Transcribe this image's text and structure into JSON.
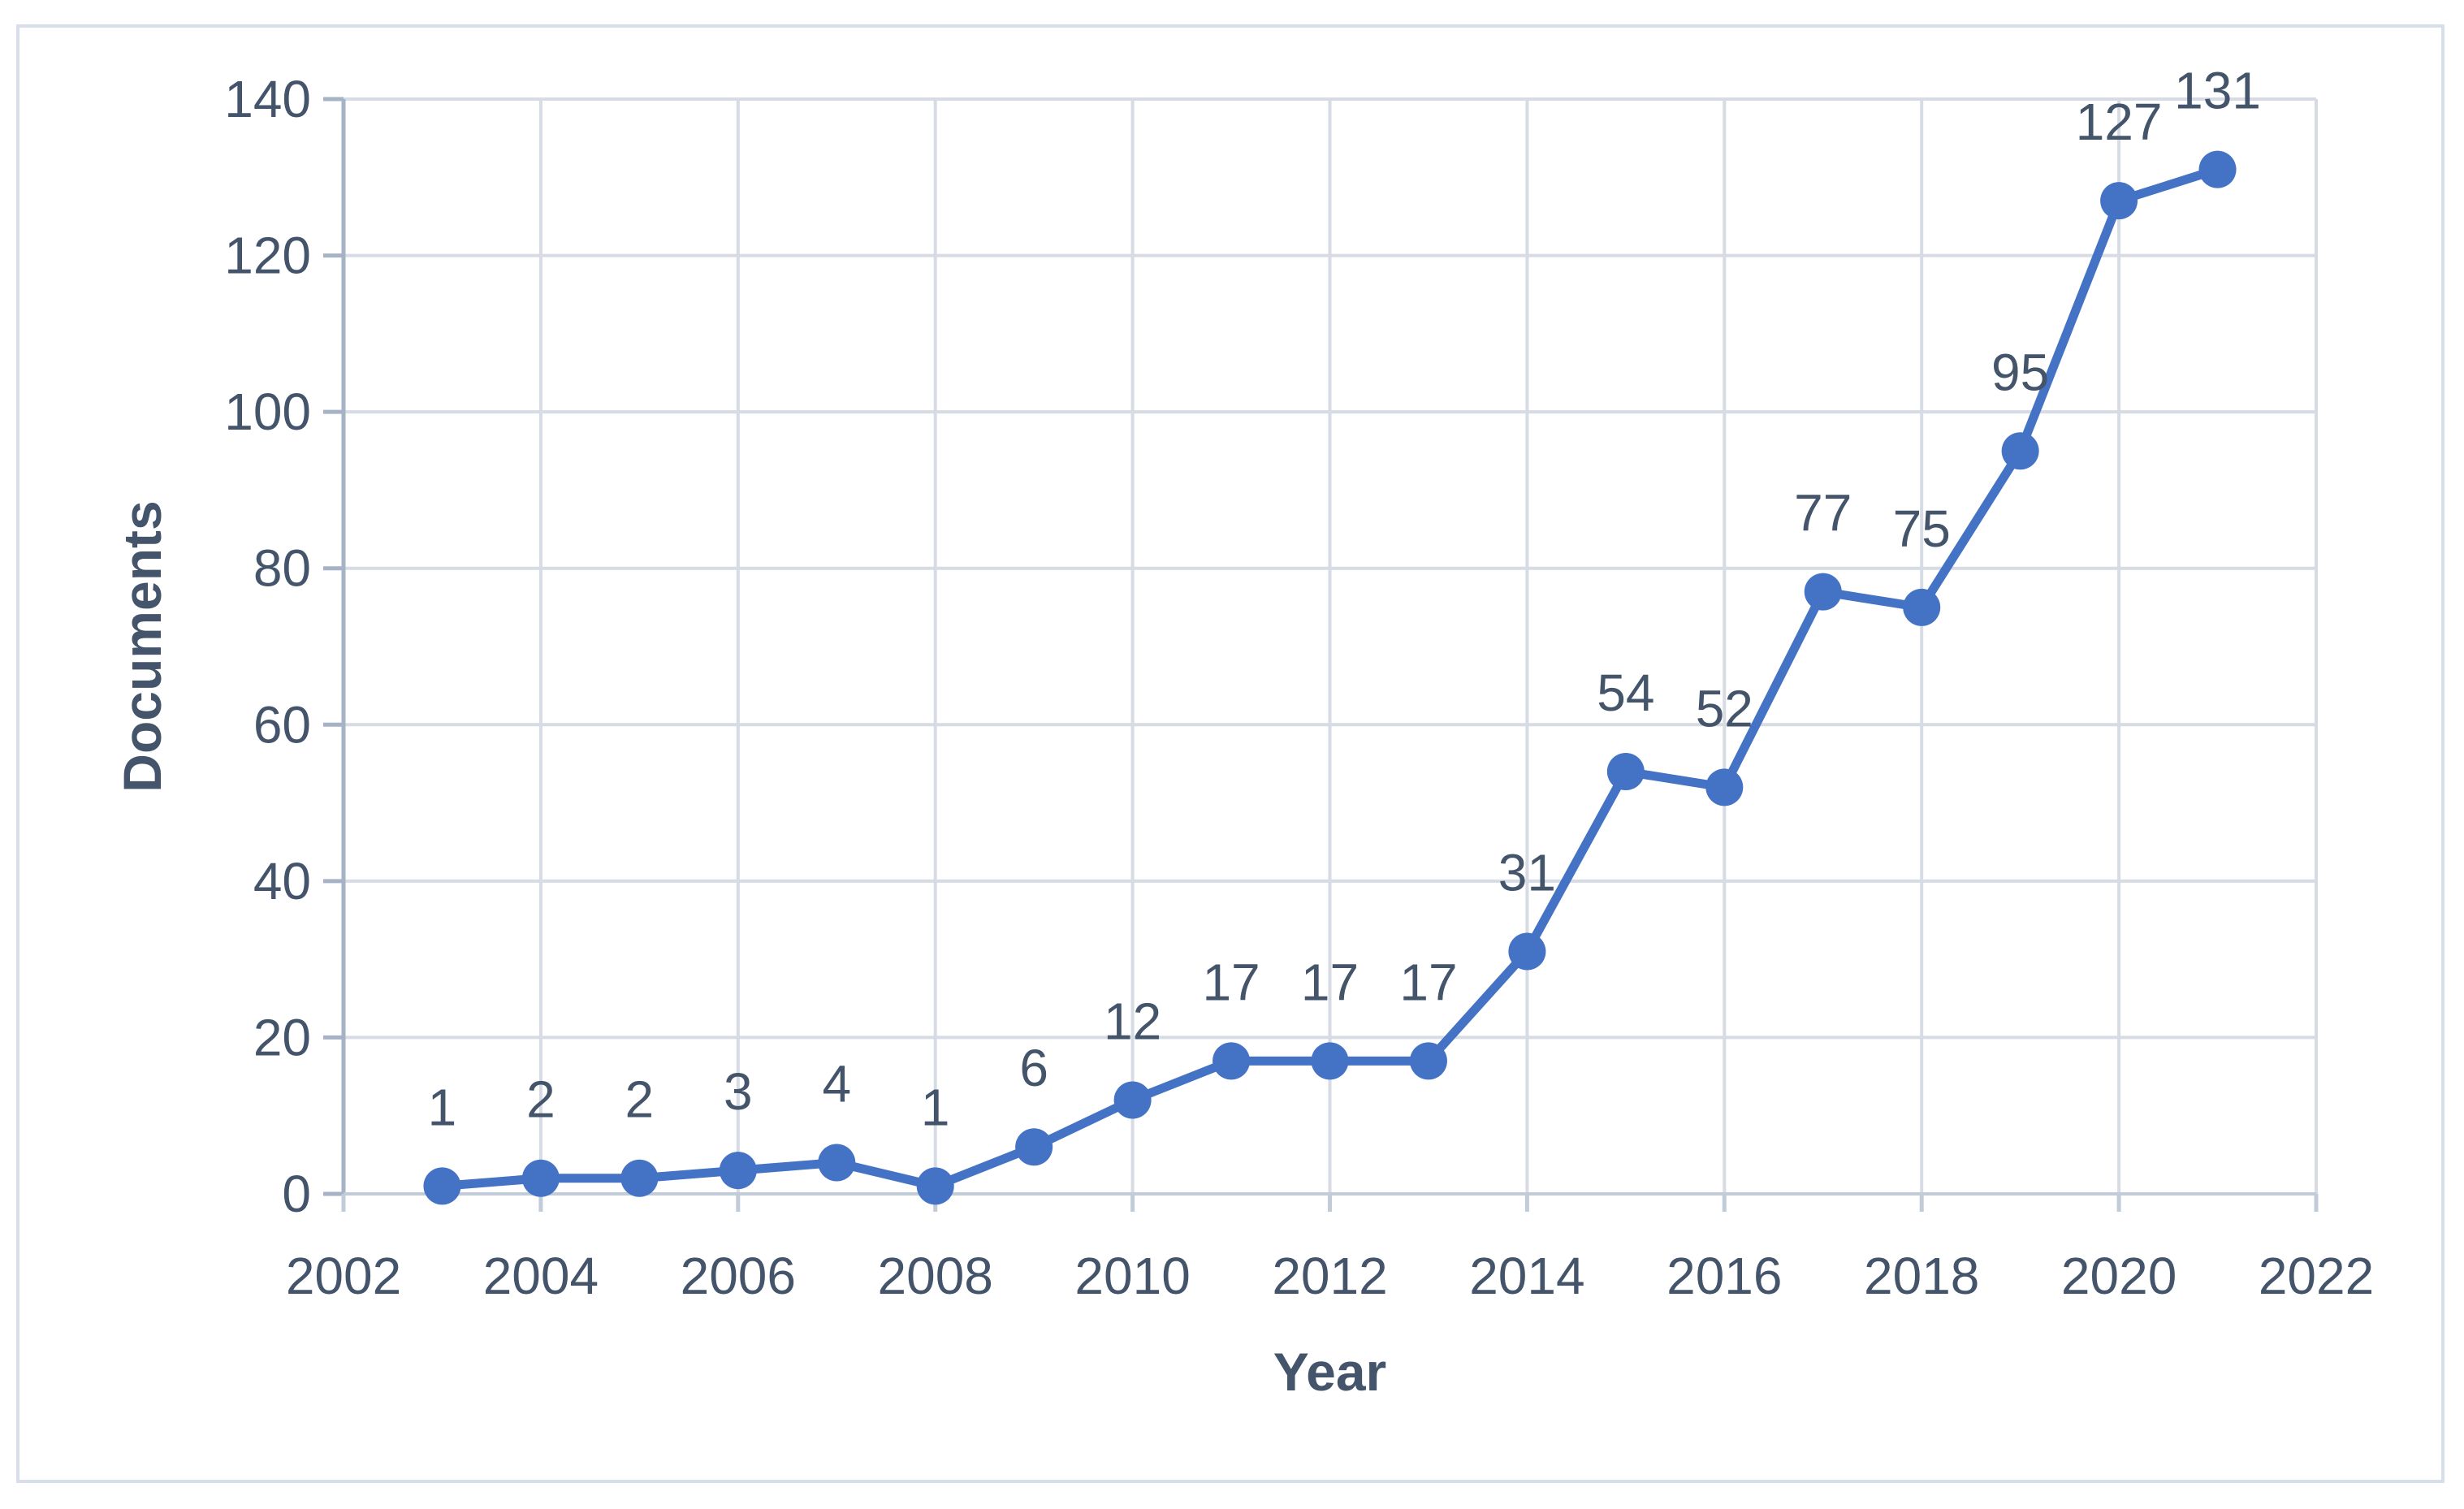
{
  "chart": {
    "xlabel": "Year",
    "ylabel": "Documents"
  },
  "chart_data": {
    "type": "line",
    "series_name": "Documents",
    "x": [
      2003,
      2004,
      2005,
      2006,
      2007,
      2008,
      2009,
      2010,
      2011,
      2012,
      2013,
      2014,
      2015,
      2016,
      2017,
      2018,
      2019,
      2020,
      2021
    ],
    "values": [
      1,
      2,
      2,
      3,
      4,
      1,
      6,
      12,
      17,
      17,
      17,
      31,
      54,
      52,
      77,
      75,
      95,
      127,
      131
    ],
    "data_labels": [
      1,
      2,
      2,
      3,
      4,
      1,
      6,
      12,
      17,
      17,
      17,
      31,
      54,
      52,
      77,
      75,
      95,
      127,
      131
    ],
    "xlabel": "Year",
    "ylabel": "Documents",
    "xlim": [
      2002,
      2022
    ],
    "ylim": [
      0,
      140
    ],
    "xticks": [
      2002,
      2004,
      2006,
      2008,
      2010,
      2012,
      2014,
      2016,
      2018,
      2020,
      2022
    ],
    "yticks": [
      0,
      20,
      40,
      60,
      80,
      100,
      120,
      140
    ],
    "grid": true,
    "legend": "none",
    "marker": "circle",
    "colors": {
      "line": "#4472C4",
      "marker": "#4472C4",
      "tick_text": "#44546A",
      "label_text": "#44546A",
      "axis_title_text": "#44546A",
      "gridline": "#D6DBE4",
      "y_axis_line": "#A6B2C5",
      "x_axis_line": "#C2CBD8",
      "frame_border": "#D9DFEA",
      "background": "#FFFFFF"
    }
  }
}
